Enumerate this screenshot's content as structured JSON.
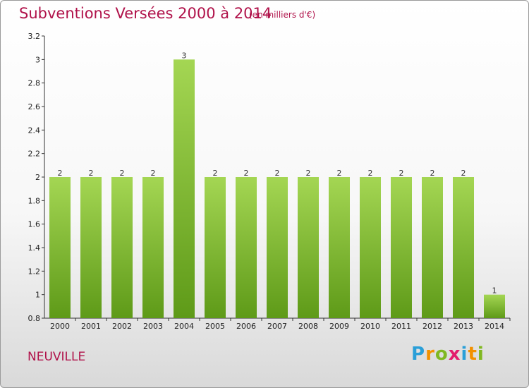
{
  "header": {
    "title": "Subventions Versées 2000 à 2014",
    "subtitle": "(en milliers d'€)"
  },
  "footer": {
    "commune": "NEUVILLE",
    "logo_letters": [
      "P",
      "r",
      "o",
      "x",
      "i",
      "t",
      "i"
    ],
    "logo_colors": [
      "#2a9fd8",
      "#f29100",
      "#80b821",
      "#e31b6d",
      "#2a9fd8",
      "#f29100",
      "#80b821"
    ]
  },
  "colors": {
    "bar_top": "#a4d653",
    "bar_bottom": "#5e9a18",
    "title": "#b0124a"
  },
  "chart_data": {
    "type": "bar",
    "categories": [
      "2000",
      "2001",
      "2002",
      "2003",
      "2004",
      "2005",
      "2006",
      "2007",
      "2008",
      "2009",
      "2010",
      "2011",
      "2012",
      "2013",
      "2014"
    ],
    "values": [
      2,
      2,
      2,
      2,
      3,
      2,
      2,
      2,
      2,
      2,
      2,
      2,
      2,
      2,
      1
    ],
    "data_labels": [
      "2",
      "2",
      "2",
      "2",
      "3",
      "2",
      "2",
      "2",
      "2",
      "2",
      "2",
      "2",
      "2",
      "2",
      "1"
    ],
    "ylim": [
      0.8,
      3.2
    ],
    "yticks": [
      0.8,
      1,
      1.2,
      1.4,
      1.6,
      1.8,
      2,
      2.2,
      2.4,
      2.6,
      2.8,
      3,
      3.2
    ],
    "ytick_labels": [
      "0.8",
      "1",
      "1.2",
      "1.4",
      "1.6",
      "1.8",
      "2",
      "2.2",
      "2.4",
      "2.6",
      "2.8",
      "3",
      "3.2"
    ],
    "grid": false,
    "legend": "none"
  }
}
